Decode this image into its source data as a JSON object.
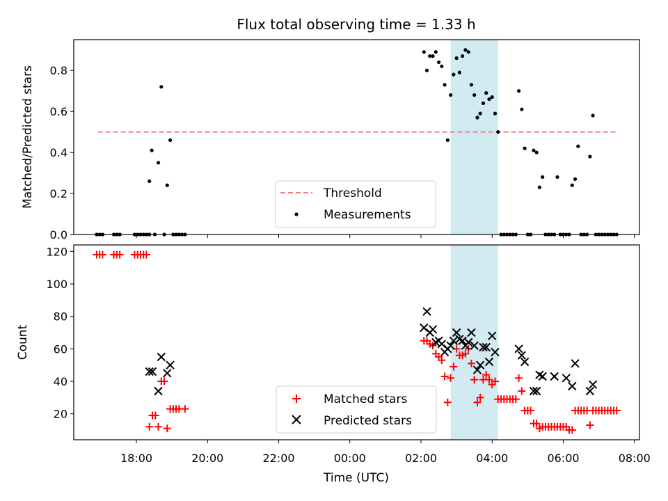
{
  "chart_data": {
    "type": "scatter",
    "title": "Flux total observing time = 1.33 h",
    "xlabel": "Time (UTC)",
    "x_ticks": [
      "18:00",
      "20:00",
      "22:00",
      "00:00",
      "02:00",
      "04:00",
      "06:00",
      "08:00"
    ],
    "highlight_span": [
      "02:50",
      "04:10"
    ],
    "colors": {
      "matched": "#ff0000",
      "predicted": "#000000",
      "threshold": "#f08080",
      "span": "#add8e6",
      "measurement": "#000000"
    },
    "panels": [
      {
        "ylabel": "Matched/Predicted stars",
        "ylim": [
          0,
          0.95
        ],
        "y_ticks": [
          "0.0",
          "0.2",
          "0.4",
          "0.6",
          "0.8"
        ],
        "legend_placement": "lower-center",
        "threshold": {
          "name": "Threshold",
          "value": 0.5,
          "x_range": [
            "16:55",
            "07:32"
          ]
        },
        "series": [
          {
            "name": "Measurements",
            "marker": "dot",
            "points": [
              [
                "16:53",
                0
              ],
              [
                "16:58",
                0
              ],
              [
                "17:03",
                0
              ],
              [
                "17:22",
                0
              ],
              [
                "17:27",
                0
              ],
              [
                "17:32",
                0
              ],
              [
                "17:57",
                0
              ],
              [
                "18:02",
                0
              ],
              [
                "18:07",
                0
              ],
              [
                "18:12",
                0
              ],
              [
                "18:17",
                0
              ],
              [
                "18:22",
                0
              ],
              [
                "18:22",
                0.26
              ],
              [
                "18:26",
                0.41
              ],
              [
                "18:31",
                0
              ],
              [
                "18:37",
                0.35
              ],
              [
                "18:42",
                0.72
              ],
              [
                "18:47",
                0
              ],
              [
                "18:52",
                0.24
              ],
              [
                "18:57",
                0.46
              ],
              [
                "19:02",
                0
              ],
              [
                "19:07",
                0
              ],
              [
                "19:12",
                0
              ],
              [
                "19:17",
                0
              ],
              [
                "19:22",
                0
              ],
              [
                "02:05",
                0.89
              ],
              [
                "02:10",
                0.8
              ],
              [
                "02:15",
                0.87
              ],
              [
                "02:20",
                0.87
              ],
              [
                "02:25",
                0.89
              ],
              [
                "02:30",
                0.84
              ],
              [
                "02:35",
                0.82
              ],
              [
                "02:40",
                0.73
              ],
              [
                "02:45",
                0.46
              ],
              [
                "02:50",
                0.68
              ],
              [
                "02:55",
                0.78
              ],
              [
                "03:00",
                0.86
              ],
              [
                "03:05",
                0.79
              ],
              [
                "03:10",
                0.87
              ],
              [
                "03:15",
                0.9
              ],
              [
                "03:20",
                0.89
              ],
              [
                "03:25",
                0.73
              ],
              [
                "03:30",
                0.68
              ],
              [
                "03:35",
                0.57
              ],
              [
                "03:40",
                0.59
              ],
              [
                "03:45",
                0.64
              ],
              [
                "03:50",
                0.69
              ],
              [
                "03:55",
                0.66
              ],
              [
                "04:00",
                0.67
              ],
              [
                "04:05",
                0.59
              ],
              [
                "04:10",
                0.5
              ],
              [
                "04:15",
                0
              ],
              [
                "04:20",
                0
              ],
              [
                "04:25",
                0
              ],
              [
                "04:30",
                0
              ],
              [
                "04:35",
                0
              ],
              [
                "04:40",
                0
              ],
              [
                "04:45",
                0.7
              ],
              [
                "04:50",
                0.61
              ],
              [
                "04:55",
                0.42
              ],
              [
                "05:00",
                0
              ],
              [
                "05:05",
                0
              ],
              [
                "05:10",
                0.41
              ],
              [
                "05:15",
                0.4
              ],
              [
                "05:20",
                0.23
              ],
              [
                "05:25",
                0.28
              ],
              [
                "05:30",
                0
              ],
              [
                "05:35",
                0
              ],
              [
                "05:40",
                0
              ],
              [
                "05:45",
                0
              ],
              [
                "05:50",
                0.28
              ],
              [
                "05:55",
                0
              ],
              [
                "06:00",
                0
              ],
              [
                "06:05",
                0
              ],
              [
                "06:10",
                0
              ],
              [
                "06:15",
                0.24
              ],
              [
                "06:20",
                0.27
              ],
              [
                "06:25",
                0.43
              ],
              [
                "06:30",
                0
              ],
              [
                "06:35",
                0
              ],
              [
                "06:40",
                0
              ],
              [
                "06:45",
                0.38
              ],
              [
                "06:50",
                0.58
              ],
              [
                "06:55",
                0
              ],
              [
                "07:00",
                0
              ],
              [
                "07:05",
                0
              ],
              [
                "07:10",
                0
              ],
              [
                "07:15",
                0
              ],
              [
                "07:20",
                0
              ],
              [
                "07:25",
                0
              ],
              [
                "07:30",
                0
              ]
            ]
          }
        ]
      },
      {
        "ylabel": "Count",
        "ylim": [
          4,
          124
        ],
        "y_ticks": [
          "20",
          "40",
          "60",
          "80",
          "100",
          "120"
        ],
        "legend_placement": "lower-center",
        "series": [
          {
            "name": "Matched stars",
            "marker": "plus",
            "points": [
              [
                "16:53",
                118
              ],
              [
                "16:58",
                118
              ],
              [
                "17:03",
                118
              ],
              [
                "17:22",
                118
              ],
              [
                "17:27",
                118
              ],
              [
                "17:32",
                118
              ],
              [
                "17:57",
                118
              ],
              [
                "18:02",
                118
              ],
              [
                "18:07",
                118
              ],
              [
                "18:12",
                118
              ],
              [
                "18:17",
                118
              ],
              [
                "18:22",
                12
              ],
              [
                "18:27",
                19
              ],
              [
                "18:32",
                19
              ],
              [
                "18:37",
                12
              ],
              [
                "18:42",
                40
              ],
              [
                "18:47",
                40
              ],
              [
                "18:52",
                11
              ],
              [
                "18:57",
                23
              ],
              [
                "19:02",
                23
              ],
              [
                "19:07",
                23
              ],
              [
                "19:12",
                23
              ],
              [
                "19:22",
                23
              ],
              [
                "02:05",
                65
              ],
              [
                "02:10",
                65
              ],
              [
                "02:15",
                63
              ],
              [
                "02:20",
                62
              ],
              [
                "02:25",
                57
              ],
              [
                "02:30",
                55
              ],
              [
                "02:35",
                53
              ],
              [
                "02:40",
                43
              ],
              [
                "02:45",
                27
              ],
              [
                "02:50",
                42
              ],
              [
                "02:55",
                49
              ],
              [
                "03:00",
                60
              ],
              [
                "03:05",
                56
              ],
              [
                "03:10",
                56
              ],
              [
                "03:15",
                57
              ],
              [
                "03:20",
                60
              ],
              [
                "03:25",
                51
              ],
              [
                "03:30",
                41
              ],
              [
                "03:35",
                27
              ],
              [
                "03:40",
                30
              ],
              [
                "03:45",
                41
              ],
              [
                "03:50",
                44
              ],
              [
                "03:55",
                41
              ],
              [
                "04:00",
                38
              ],
              [
                "04:05",
                40
              ],
              [
                "04:10",
                29
              ],
              [
                "04:15",
                29
              ],
              [
                "04:20",
                29
              ],
              [
                "04:25",
                29
              ],
              [
                "04:30",
                29
              ],
              [
                "04:35",
                29
              ],
              [
                "04:40",
                29
              ],
              [
                "04:45",
                42
              ],
              [
                "04:50",
                34
              ],
              [
                "04:55",
                22
              ],
              [
                "05:00",
                22
              ],
              [
                "05:05",
                22
              ],
              [
                "05:10",
                14
              ],
              [
                "05:15",
                14
              ],
              [
                "05:20",
                11
              ],
              [
                "05:25",
                12
              ],
              [
                "05:30",
                12
              ],
              [
                "05:35",
                12
              ],
              [
                "05:40",
                12
              ],
              [
                "05:45",
                12
              ],
              [
                "05:50",
                12
              ],
              [
                "05:55",
                12
              ],
              [
                "06:00",
                12
              ],
              [
                "06:05",
                12
              ],
              [
                "06:10",
                10
              ],
              [
                "06:15",
                10
              ],
              [
                "06:20",
                22
              ],
              [
                "06:25",
                22
              ],
              [
                "06:30",
                22
              ],
              [
                "06:35",
                22
              ],
              [
                "06:40",
                22
              ],
              [
                "06:45",
                13
              ],
              [
                "06:50",
                22
              ],
              [
                "06:55",
                22
              ],
              [
                "07:00",
                22
              ],
              [
                "07:05",
                22
              ],
              [
                "07:10",
                22
              ],
              [
                "07:15",
                22
              ],
              [
                "07:20",
                22
              ],
              [
                "07:25",
                22
              ],
              [
                "07:30",
                22
              ]
            ]
          },
          {
            "name": "Predicted stars",
            "marker": "x",
            "points": [
              [
                "18:22",
                46
              ],
              [
                "18:27",
                46
              ],
              [
                "18:37",
                34
              ],
              [
                "18:42",
                55
              ],
              [
                "18:52",
                45
              ],
              [
                "18:57",
                50
              ],
              [
                "02:05",
                73
              ],
              [
                "02:10",
                83
              ],
              [
                "02:15",
                70
              ],
              [
                "02:20",
                72
              ],
              [
                "02:25",
                64
              ],
              [
                "02:30",
                65
              ],
              [
                "02:35",
                63
              ],
              [
                "02:40",
                58
              ],
              [
                "02:45",
                60
              ],
              [
                "02:50",
                62
              ],
              [
                "02:55",
                65
              ],
              [
                "03:00",
                70
              ],
              [
                "03:05",
                66
              ],
              [
                "03:10",
                65
              ],
              [
                "03:15",
                62
              ],
              [
                "03:20",
                64
              ],
              [
                "03:25",
                70
              ],
              [
                "03:30",
                62
              ],
              [
                "03:35",
                47
              ],
              [
                "03:40",
                50
              ],
              [
                "03:45",
                61
              ],
              [
                "03:50",
                61
              ],
              [
                "03:55",
                52
              ],
              [
                "04:00",
                68
              ],
              [
                "04:05",
                58
              ],
              [
                "04:45",
                60
              ],
              [
                "04:50",
                56
              ],
              [
                "04:55",
                52
              ],
              [
                "05:10",
                34
              ],
              [
                "05:15",
                34
              ],
              [
                "05:20",
                44
              ],
              [
                "05:25",
                43
              ],
              [
                "05:45",
                43
              ],
              [
                "06:05",
                42
              ],
              [
                "06:15",
                37
              ],
              [
                "06:20",
                51
              ],
              [
                "06:45",
                34
              ],
              [
                "06:50",
                38
              ]
            ]
          }
        ]
      }
    ]
  }
}
